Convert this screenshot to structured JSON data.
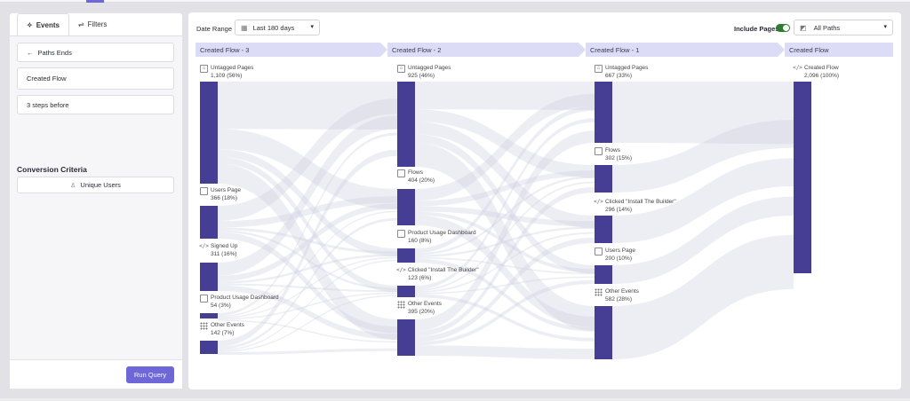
{
  "left": {
    "tabs": [
      {
        "label": "Events",
        "icon": "sparkle-icon"
      },
      {
        "label": "Filters",
        "icon": "sliders-icon"
      }
    ],
    "paths_ends_label": "Paths Ends",
    "event_value": "Created Flow",
    "steps_value": "3 steps before",
    "conversion_title": "Conversion Criteria",
    "unique_users_label": "Unique Users",
    "run_button": "Run Query"
  },
  "toolbar": {
    "date_range_label": "Date Range",
    "date_range_value": "Last 180 days",
    "include_pages_label": "Include Pages",
    "include_pages_on": true,
    "paths_value": "All Paths"
  },
  "colors": {
    "accent": "#6e67d8",
    "node": "#463e94",
    "step_band": "#dcdcf7",
    "flow": "#cfcfe3",
    "toggle": "#2f7d32"
  },
  "flow": {
    "steps": [
      {
        "title": "Created Flow - 3",
        "nodes": [
          {
            "name": "Untagged Pages",
            "value": "1,109 (56%)",
            "icon": "tag-page-icon"
          },
          {
            "name": "Users Page",
            "value": "366 (18%)",
            "icon": "page-icon"
          },
          {
            "name": "Signed Up",
            "value": "311 (16%)",
            "icon": "code-icon"
          },
          {
            "name": "Product Usage Dashboard",
            "value": "54 (3%)",
            "icon": "page-icon"
          },
          {
            "name": "Other Events",
            "value": "142 (7%)",
            "icon": "grid-icon"
          }
        ]
      },
      {
        "title": "Created Flow - 2",
        "nodes": [
          {
            "name": "Untagged Pages",
            "value": "925 (46%)",
            "icon": "tag-page-icon"
          },
          {
            "name": "Flows",
            "value": "404 (20%)",
            "icon": "page-icon"
          },
          {
            "name": "Product Usage Dashboard",
            "value": "160 (8%)",
            "icon": "page-icon"
          },
          {
            "name": "Clicked \"Install The Builder\"",
            "value": "123 (6%)",
            "icon": "code-icon"
          },
          {
            "name": "Other Events",
            "value": "395 (20%)",
            "icon": "grid-icon"
          }
        ]
      },
      {
        "title": "Created Flow - 1",
        "nodes": [
          {
            "name": "Untagged Pages",
            "value": "667 (33%)",
            "icon": "tag-page-icon"
          },
          {
            "name": "Flows",
            "value": "302 (15%)",
            "icon": "page-icon"
          },
          {
            "name": "Clicked \"Install The Builder\"",
            "value": "296 (14%)",
            "icon": "code-icon"
          },
          {
            "name": "Users Page",
            "value": "200 (10%)",
            "icon": "page-icon"
          },
          {
            "name": "Other Events",
            "value": "582 (28%)",
            "icon": "grid-icon"
          }
        ]
      },
      {
        "title": "Created Flow",
        "nodes": [
          {
            "name": "Created Flow",
            "value": "2,096 (100%)",
            "icon": "code-icon"
          }
        ]
      }
    ]
  }
}
